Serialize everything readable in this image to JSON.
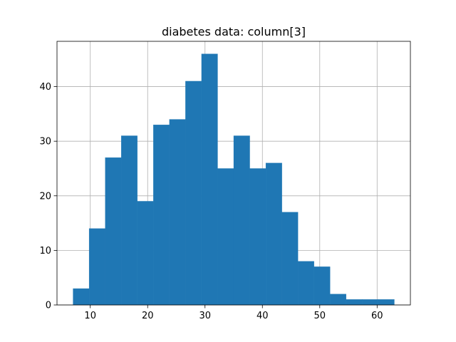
{
  "chart_data": {
    "type": "bar",
    "subtype": "histogram",
    "title": "diabetes data: column[3]",
    "xlabel": "",
    "ylabel": "",
    "xlim": [
      4.2,
      65.8
    ],
    "ylim": [
      0,
      48.3
    ],
    "xticks": [
      10,
      20,
      30,
      40,
      50,
      60
    ],
    "yticks": [
      0,
      10,
      20,
      30,
      40
    ],
    "grid": true,
    "bar_color": "#1f77b4",
    "bins": [
      {
        "x0": 7.0,
        "x1": 9.8,
        "count": 3
      },
      {
        "x0": 9.8,
        "x1": 12.6,
        "count": 14
      },
      {
        "x0": 12.6,
        "x1": 15.4,
        "count": 27
      },
      {
        "x0": 15.4,
        "x1": 18.2,
        "count": 31
      },
      {
        "x0": 18.2,
        "x1": 21.0,
        "count": 19
      },
      {
        "x0": 21.0,
        "x1": 23.8,
        "count": 33
      },
      {
        "x0": 23.8,
        "x1": 26.6,
        "count": 34
      },
      {
        "x0": 26.6,
        "x1": 29.4,
        "count": 41
      },
      {
        "x0": 29.4,
        "x1": 32.2,
        "count": 46
      },
      {
        "x0": 32.2,
        "x1": 35.0,
        "count": 25
      },
      {
        "x0": 35.0,
        "x1": 37.8,
        "count": 31
      },
      {
        "x0": 37.8,
        "x1": 40.6,
        "count": 25
      },
      {
        "x0": 40.6,
        "x1": 43.4,
        "count": 26
      },
      {
        "x0": 43.4,
        "x1": 46.2,
        "count": 17
      },
      {
        "x0": 46.2,
        "x1": 49.0,
        "count": 8
      },
      {
        "x0": 49.0,
        "x1": 51.8,
        "count": 7
      },
      {
        "x0": 51.8,
        "x1": 54.6,
        "count": 2
      },
      {
        "x0": 54.6,
        "x1": 57.4,
        "count": 1
      },
      {
        "x0": 57.4,
        "x1": 60.2,
        "count": 1
      },
      {
        "x0": 60.2,
        "x1": 63.0,
        "count": 1
      }
    ]
  }
}
